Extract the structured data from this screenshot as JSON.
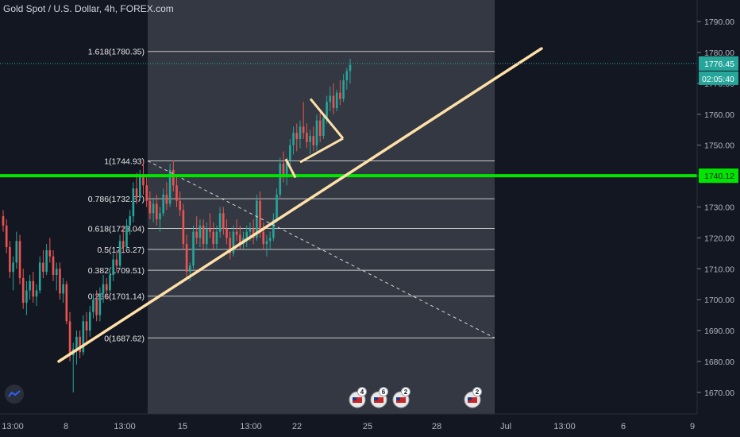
{
  "header": {
    "title": "Gold Spot / U.S. Dollar, 4h, FOREX.com"
  },
  "colors": {
    "background": "#131722",
    "up": "#26a69a",
    "down": "#ef5350",
    "trendline": "#ffe0a8",
    "support": "#00e600",
    "price_tag": "#26a69a",
    "fib_zone": "#3a3e48"
  },
  "chart_data": {
    "type": "candlestick",
    "title": "Gold Spot / U.S. Dollar, 4h, FOREX.com",
    "ylim": [
      1663,
      1797
    ],
    "y_ticks": [
      1670,
      1680,
      1690,
      1700,
      1710,
      1720,
      1730,
      1740,
      1750,
      1760,
      1770,
      1780,
      1790
    ],
    "y_tick_labels": [
      "1670.00",
      "1680.00",
      "1690.00",
      "1700.00",
      "1710.00",
      "1720.00",
      "1730.00",
      "1740.00",
      "1750.00",
      "1760.00",
      "1770.00",
      "1780.00",
      "1790.00"
    ],
    "x_labels": [
      "13:00",
      "8",
      "13:00",
      "15",
      "13:00",
      "22",
      "25",
      "28",
      "Jul",
      "13:00",
      "6",
      "9"
    ],
    "last_price": "1776.45",
    "countdown": "02:05:40",
    "support_level": "1740.12",
    "fibonacci": [
      {
        "label": "1.618(1780.35)",
        "value": 1780.35
      },
      {
        "label": "1(1744.93)",
        "value": 1744.93
      },
      {
        "label": "0.786(1732.67)",
        "value": 1732.67
      },
      {
        "label": "0.618(1723.04)",
        "value": 1723.04
      },
      {
        "label": "0.5(1716.27)",
        "value": 1716.27
      },
      {
        "label": "0.382(1709.51)",
        "value": 1709.51
      },
      {
        "label": "0.236(1701.14)",
        "value": 1701.14
      },
      {
        "label": "0(1687.62)",
        "value": 1687.62
      }
    ],
    "events": [
      {
        "count": "4"
      },
      {
        "count": "6"
      },
      {
        "count": "2"
      },
      {
        "count": "2"
      }
    ],
    "candles": [
      [
        1727,
        1729,
        1722,
        1724
      ],
      [
        1724,
        1726,
        1715,
        1717
      ],
      [
        1717,
        1719,
        1707,
        1709
      ],
      [
        1709,
        1714,
        1703,
        1712
      ],
      [
        1712,
        1722,
        1710,
        1719
      ],
      [
        1719,
        1721,
        1705,
        1707
      ],
      [
        1707,
        1710,
        1697,
        1699
      ],
      [
        1699,
        1706,
        1695,
        1703
      ],
      [
        1703,
        1708,
        1700,
        1706
      ],
      [
        1706,
        1709,
        1699,
        1701
      ],
      [
        1701,
        1705,
        1698,
        1703
      ],
      [
        1703,
        1714,
        1702,
        1712
      ],
      [
        1712,
        1716,
        1707,
        1709
      ],
      [
        1709,
        1718,
        1708,
        1716
      ],
      [
        1716,
        1720,
        1712,
        1714
      ],
      [
        1714,
        1716,
        1706,
        1708
      ],
      [
        1708,
        1712,
        1703,
        1710
      ],
      [
        1710,
        1712,
        1700,
        1702
      ],
      [
        1702,
        1707,
        1699,
        1705
      ],
      [
        1705,
        1706,
        1692,
        1693
      ],
      [
        1693,
        1696,
        1680,
        1682
      ],
      [
        1682,
        1686,
        1670,
        1684
      ],
      [
        1684,
        1690,
        1679,
        1688
      ],
      [
        1688,
        1690,
        1681,
        1683
      ],
      [
        1683,
        1695,
        1682,
        1693
      ],
      [
        1693,
        1696,
        1686,
        1690
      ],
      [
        1690,
        1698,
        1688,
        1696
      ],
      [
        1696,
        1702,
        1694,
        1700
      ],
      [
        1700,
        1703,
        1693,
        1695
      ],
      [
        1695,
        1704,
        1693,
        1702
      ],
      [
        1702,
        1708,
        1699,
        1705
      ],
      [
        1705,
        1707,
        1700,
        1703
      ],
      [
        1703,
        1710,
        1702,
        1708
      ],
      [
        1708,
        1715,
        1706,
        1713
      ],
      [
        1713,
        1716,
        1709,
        1711
      ],
      [
        1711,
        1721,
        1710,
        1719
      ],
      [
        1719,
        1724,
        1715,
        1717
      ],
      [
        1717,
        1726,
        1716,
        1724
      ],
      [
        1724,
        1729,
        1721,
        1727
      ],
      [
        1727,
        1738,
        1725,
        1736
      ],
      [
        1736,
        1741,
        1731,
        1733
      ],
      [
        1733,
        1742,
        1732,
        1740
      ],
      [
        1740,
        1745,
        1734,
        1737
      ],
      [
        1737,
        1740,
        1730,
        1732
      ],
      [
        1732,
        1735,
        1726,
        1728
      ],
      [
        1728,
        1733,
        1725,
        1731
      ],
      [
        1731,
        1734,
        1724,
        1726
      ],
      [
        1726,
        1730,
        1722,
        1728
      ],
      [
        1728,
        1736,
        1727,
        1734
      ],
      [
        1734,
        1738,
        1729,
        1731
      ],
      [
        1731,
        1744,
        1730,
        1742
      ],
      [
        1742,
        1745,
        1735,
        1737
      ],
      [
        1737,
        1740,
        1730,
        1732
      ],
      [
        1732,
        1735,
        1727,
        1729
      ],
      [
        1729,
        1731,
        1716,
        1718
      ],
      [
        1718,
        1721,
        1707,
        1709
      ],
      [
        1709,
        1712,
        1706,
        1711
      ],
      [
        1711,
        1724,
        1710,
        1722
      ],
      [
        1722,
        1727,
        1718,
        1720
      ],
      [
        1720,
        1726,
        1717,
        1724
      ],
      [
        1724,
        1726,
        1716,
        1718
      ],
      [
        1718,
        1725,
        1716,
        1723
      ],
      [
        1723,
        1728,
        1720,
        1722
      ],
      [
        1722,
        1725,
        1716,
        1718
      ],
      [
        1718,
        1724,
        1716,
        1722
      ],
      [
        1722,
        1730,
        1720,
        1728
      ],
      [
        1728,
        1730,
        1721,
        1723
      ],
      [
        1723,
        1726,
        1718,
        1720
      ],
      [
        1720,
        1722,
        1713,
        1715
      ],
      [
        1715,
        1724,
        1714,
        1722
      ],
      [
        1722,
        1726,
        1719,
        1721
      ],
      [
        1721,
        1724,
        1716,
        1718
      ],
      [
        1718,
        1722,
        1716,
        1720
      ],
      [
        1720,
        1724,
        1717,
        1722
      ],
      [
        1722,
        1725,
        1719,
        1723
      ],
      [
        1723,
        1726,
        1718,
        1720
      ],
      [
        1720,
        1734,
        1719,
        1732
      ],
      [
        1732,
        1735,
        1720,
        1722
      ],
      [
        1722,
        1725,
        1716,
        1718
      ],
      [
        1718,
        1721,
        1714,
        1719
      ],
      [
        1719,
        1722,
        1716,
        1720
      ],
      [
        1720,
        1728,
        1719,
        1726
      ],
      [
        1726,
        1736,
        1725,
        1734
      ],
      [
        1734,
        1746,
        1733,
        1744
      ],
      [
        1744,
        1748,
        1738,
        1740
      ],
      [
        1740,
        1746,
        1737,
        1745
      ],
      [
        1745,
        1752,
        1743,
        1750
      ],
      [
        1750,
        1756,
        1747,
        1754
      ],
      [
        1754,
        1757,
        1748,
        1752
      ],
      [
        1752,
        1758,
        1749,
        1756
      ],
      [
        1756,
        1764,
        1752,
        1754
      ],
      [
        1754,
        1757,
        1749,
        1751
      ],
      [
        1751,
        1755,
        1747,
        1753
      ],
      [
        1753,
        1756,
        1748,
        1750
      ],
      [
        1750,
        1760,
        1748,
        1758
      ],
      [
        1758,
        1761,
        1751,
        1753
      ],
      [
        1753,
        1760,
        1752,
        1759
      ],
      [
        1759,
        1766,
        1757,
        1764
      ],
      [
        1764,
        1769,
        1761,
        1766
      ],
      [
        1766,
        1770,
        1760,
        1762
      ],
      [
        1762,
        1768,
        1761,
        1767
      ],
      [
        1767,
        1771,
        1763,
        1765
      ],
      [
        1765,
        1773,
        1764,
        1771
      ],
      [
        1771,
        1775,
        1768,
        1774
      ],
      [
        1774,
        1778,
        1770,
        1776
      ]
    ]
  }
}
